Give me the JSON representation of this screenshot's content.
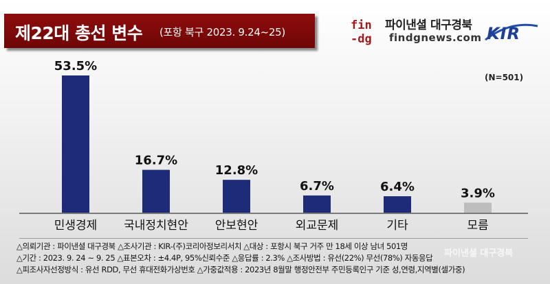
{
  "header": {
    "title": "제22대 총선 변수",
    "subtitle": "(포항 북구 2023. 9.24~25)"
  },
  "brand": {
    "logo_text": "fin-dg",
    "name": "파이낸셜 대구경북",
    "url": "findgnews.com",
    "partner_logo": "KIR"
  },
  "sample_note": "(N=501)",
  "colors": {
    "primary_bar": "#1e2b78",
    "muted_bar": "#bdbdbd",
    "banner": "#7a0a0a"
  },
  "chart_data": {
    "type": "bar",
    "categories": [
      "민생경제",
      "국내정치현안",
      "안보현안",
      "외교문제",
      "기타",
      "모름"
    ],
    "values": [
      53.5,
      16.7,
      12.8,
      6.7,
      6.4,
      3.9
    ],
    "value_labels": [
      "53.5%",
      "16.7%",
      "12.8%",
      "6.7%",
      "6.4%",
      "3.9%"
    ],
    "unit": "%",
    "ylim": [
      0,
      53.5
    ],
    "grid": false,
    "legend": "none"
  },
  "footer": {
    "lines": [
      "△의뢰기관 : 파이낸셜 대구경북    △조사기관 : KIR-(주)코리아정보리서치    △대상 : 포항시 북구 거주 만 18세 이상 남녀 501명",
      "△기간 : 2023. 9. 24 ~ 9. 25   △표본오차 : ±4.4P, 95%신뢰수준   △응답률 : 2.3%   △조사방법 : 유선(22%) 무선(78%) 자동응답",
      "△피조사자선정방식 : 유선 RDD, 무선 휴대전화가상번호   △가중값적용 : 2023년 8월말 행정안전부 주민등록인구 기준 성,연령,지역별(셀가중)"
    ],
    "watermark": "파이낸셜 대구경북"
  }
}
